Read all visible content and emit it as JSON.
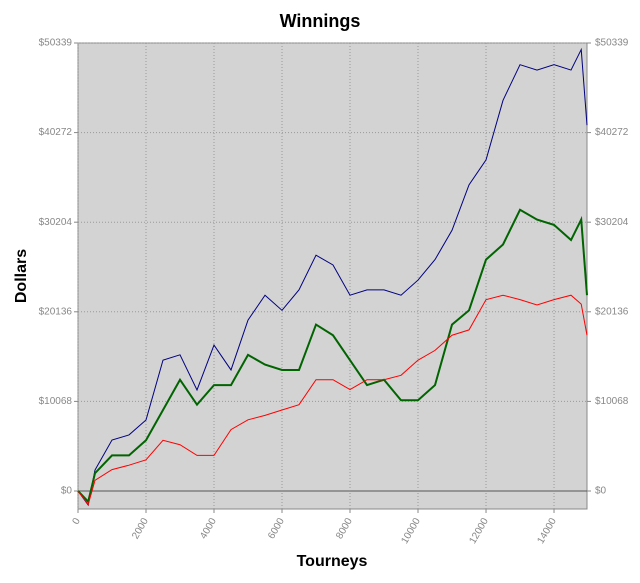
{
  "chart_data": {
    "type": "line",
    "title": "Winnings",
    "x_label": "Tourneys",
    "y_label": "Dollars",
    "x": [
      0,
      300,
      500,
      1000,
      1500,
      2000,
      2500,
      3000,
      3500,
      4000,
      4500,
      5000,
      5500,
      6000,
      6500,
      7000,
      7500,
      8000,
      8500,
      9000,
      9500,
      10000,
      10500,
      11000,
      11500,
      12000,
      12500,
      13000,
      13500,
      14000,
      14500,
      14800,
      14970
    ],
    "series": [
      {
        "color": "#000080",
        "values": [
          0,
          -1570,
          2360,
          5730,
          6300,
          7980,
          14700,
          15300,
          11350,
          16400,
          13600,
          19200,
          22000,
          20300,
          22600,
          26500,
          25400,
          22000,
          22600,
          22600,
          22000,
          23700,
          26000,
          29300,
          34400,
          37200,
          43900,
          47900,
          47300,
          47900,
          47300,
          49600,
          41100
        ]
      },
      {
        "color": "#006400",
        "values": [
          0,
          -1200,
          2000,
          4000,
          4000,
          5700,
          9100,
          12500,
          9700,
          11900,
          11900,
          15300,
          14200,
          13600,
          13600,
          18700,
          17500,
          14700,
          11900,
          12500,
          10200,
          10200,
          11900,
          18700,
          20300,
          26000,
          27700,
          31600,
          30500,
          29900,
          28200,
          30500,
          22000
        ]
      },
      {
        "color": "#ff0000",
        "values": [
          0,
          -1500,
          1200,
          2400,
          2900,
          3500,
          5700,
          5200,
          4000,
          4000,
          6900,
          8000,
          8500,
          9100,
          9700,
          12500,
          12500,
          11400,
          12500,
          12500,
          13000,
          14700,
          15800,
          17500,
          18100,
          21500,
          22000,
          21500,
          20900,
          21500,
          22000,
          21000,
          17500
        ]
      }
    ],
    "xlim": [
      0,
      14970
    ],
    "ylim": [
      -2023,
      50339
    ],
    "xticks": [
      0,
      2000,
      4000,
      6000,
      8000,
      10000,
      12000,
      14000
    ],
    "yticks": [
      {
        "value": 0,
        "label": "$0"
      },
      {
        "value": 10068,
        "label": "$10068"
      },
      {
        "value": 20136,
        "label": "$20136"
      },
      {
        "value": 30204,
        "label": "$30204"
      },
      {
        "value": 40272,
        "label": "$40272"
      },
      {
        "value": 50339,
        "label": "$50339"
      }
    ],
    "grid": true
  }
}
